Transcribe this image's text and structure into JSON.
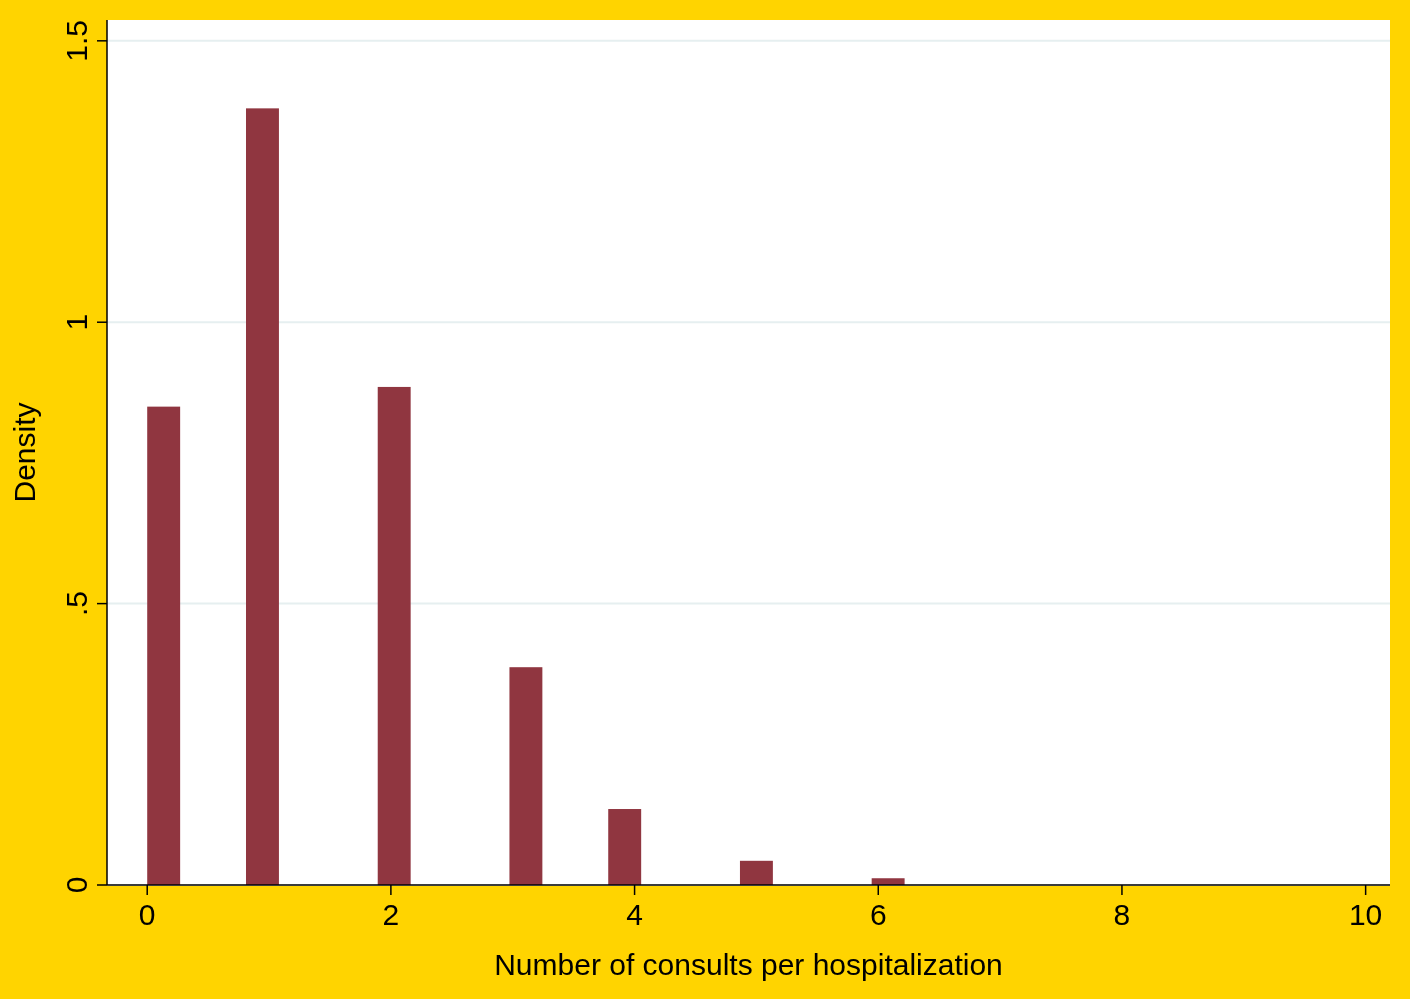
{
  "chart_data": {
    "type": "histogram",
    "xlabel": "Number of consults per hospitalization",
    "ylabel": "Density",
    "bins": [
      0,
      0.2703,
      0.5405,
      0.8108,
      1.0811,
      1.3514,
      1.6216,
      1.8919,
      2.1622,
      2.4324,
      2.7027,
      2.973,
      3.2432,
      3.5135,
      3.7838,
      4.0541,
      4.3243,
      4.5946,
      4.8649,
      5.1351,
      5.4054,
      5.6757,
      5.9459,
      6.2162,
      6.4865,
      6.7568,
      7.027,
      7.2973,
      7.5676,
      7.8378,
      8.1081,
      8.3784,
      8.6486,
      8.9189,
      9.1892,
      9.4595,
      9.7297,
      10
    ],
    "values": [
      0.85,
      0,
      0,
      1.38,
      0,
      0,
      0,
      0.885,
      0,
      0,
      0,
      0.387,
      0,
      0,
      0.135,
      0,
      0,
      0,
      0.043,
      0,
      0,
      0,
      0.012,
      0,
      0,
      0,
      0,
      0,
      0,
      0,
      0,
      0,
      0,
      0,
      0,
      0,
      0
    ],
    "color": "#903640",
    "xlim": [
      -0.33,
      10.2
    ],
    "ylim": [
      0,
      1.537
    ],
    "xticks": [
      0,
      2,
      4,
      6,
      8,
      10
    ],
    "yticks": [
      0,
      {
        "value": 0.5,
        "label": ".5"
      },
      1,
      1.5
    ],
    "grid": "y"
  }
}
